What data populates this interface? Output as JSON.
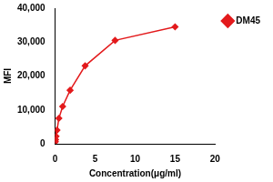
{
  "chart_data": {
    "type": "line",
    "x_label": "Concentration(μg/ml)",
    "y_label": "MFI",
    "series": [
      {
        "name": "DM45",
        "color": "#e31a1c",
        "marker": "diamond",
        "x": [
          0.0293,
          0.0586,
          0.117,
          0.234,
          0.469,
          0.9375,
          1.875,
          3.75,
          7.5,
          15
        ],
        "values": [
          600,
          1200,
          2200,
          4000,
          7500,
          11000,
          15800,
          23000,
          30500,
          34500
        ]
      }
    ],
    "xlim": [
      0,
      20
    ],
    "xticks": [
      0,
      5,
      10,
      15,
      20
    ],
    "ylim": [
      0,
      40000
    ],
    "yticks": [
      0,
      10000,
      20000,
      30000,
      40000
    ],
    "grid": false,
    "legend": "right"
  }
}
